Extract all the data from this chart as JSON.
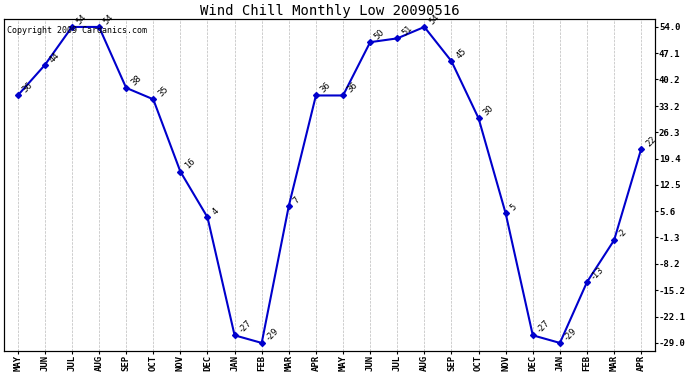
{
  "title": "Wind Chill Monthly Low 20090516",
  "copyright": "Copyright 2009 Cardanics.com",
  "months": [
    "MAY",
    "JUN",
    "JUL",
    "AUG",
    "SEP",
    "OCT",
    "NOV",
    "DEC",
    "JAN",
    "FEB",
    "MAR",
    "APR",
    "MAY",
    "JUN",
    "JUL",
    "AUG",
    "SEP",
    "OCT",
    "NOV",
    "DEC",
    "JAN",
    "FEB",
    "MAR",
    "APR"
  ],
  "values": [
    36,
    44,
    54,
    54,
    38,
    35,
    16,
    4,
    -27,
    -29,
    7,
    36,
    36,
    50,
    51,
    54,
    45,
    30,
    5,
    -27,
    -29,
    -13,
    -2,
    22
  ],
  "ylim_min": -31.0,
  "ylim_max": 56.0,
  "yticks": [
    54.0,
    47.1,
    40.2,
    33.2,
    26.3,
    19.4,
    12.5,
    5.6,
    -1.3,
    -8.2,
    -15.2,
    -22.1,
    -29.0
  ],
  "line_color": "#0000cc",
  "marker": "D",
  "marker_size": 3,
  "bg_color": "#ffffff",
  "grid_color": "#bbbbbb",
  "title_fontsize": 10,
  "label_fontsize": 6,
  "tick_fontsize": 6.5,
  "copyright_fontsize": 6
}
